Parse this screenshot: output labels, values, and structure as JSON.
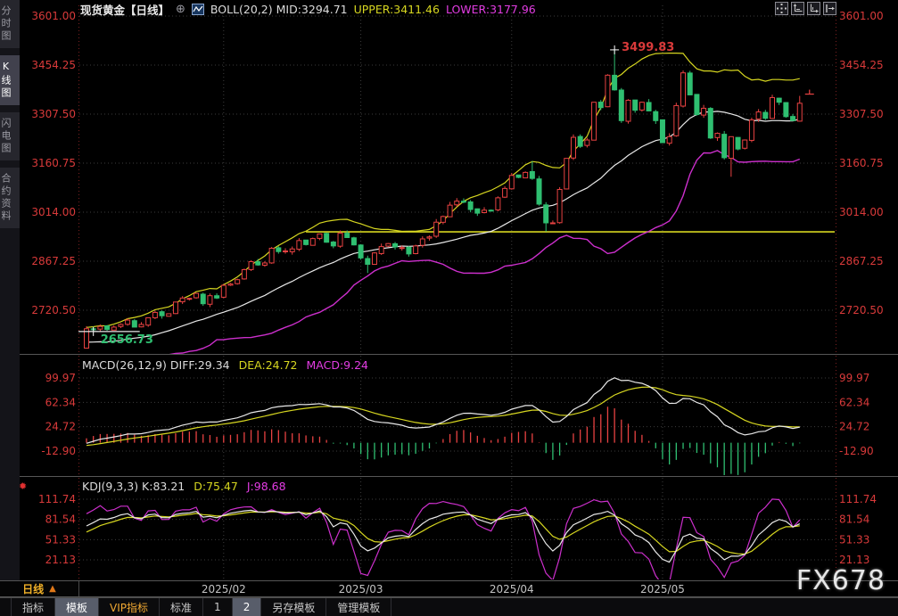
{
  "header": {
    "title": "现货黄金【日线】",
    "expand_symbol": "⊕",
    "boll_readout_white": "BOLL(20,2) MID:3294.71",
    "boll_readout_upper": "UPPER:3411.46",
    "boll_readout_lower": "LOWER:3177.96"
  },
  "sidebar": {
    "items": [
      {
        "label": "分时图",
        "active": false
      },
      {
        "label": "K线图",
        "active": true
      },
      {
        "label": "闪电图",
        "active": false
      },
      {
        "label": "合约资料",
        "active": false
      }
    ]
  },
  "top_right_tools": [
    {
      "name": "crosshair-tool-icon"
    },
    {
      "name": "fit-y-axis-icon"
    },
    {
      "name": "fit-x-axis-icon"
    },
    {
      "name": "pan-right-icon"
    }
  ],
  "macd_panel": {
    "readout_white": "MACD(26,12,9) DIFF:29.34",
    "readout_yellow": "DEA:24.72",
    "readout_magenta": "MACD:9.24",
    "y_ticks": [
      "99.97",
      "62.34",
      "24.72",
      "-12.90"
    ],
    "y_tick_values": [
      99.97,
      62.34,
      24.72,
      -12.9
    ]
  },
  "kdj_panel": {
    "readout_white": "KDJ(9,3,3) K:83.21",
    "readout_yellow": "D:75.47",
    "readout_magenta": "J:98.68",
    "alert_icon": "✹",
    "y_ticks": [
      "111.74",
      "81.54",
      "51.33",
      "21.13"
    ],
    "y_tick_values": [
      111.74,
      81.54,
      51.33,
      21.13
    ]
  },
  "x_axis": {
    "period_label": "日线",
    "period_arrow": "▲",
    "date_ticks": [
      {
        "index": 20,
        "label": "2025/02"
      },
      {
        "index": 40,
        "label": "2025/03"
      },
      {
        "index": 62,
        "label": "2025/04"
      },
      {
        "index": 84,
        "label": "2025/05"
      }
    ]
  },
  "bottom_bar": {
    "items": [
      {
        "label": "指标",
        "selected": false,
        "vip": false
      },
      {
        "label": "模板",
        "selected": true,
        "vip": false
      },
      {
        "label": "VIP指标",
        "selected": false,
        "vip": true
      },
      {
        "label": "标准",
        "selected": false,
        "vip": false
      },
      {
        "label": "1",
        "selected": false,
        "vip": false
      },
      {
        "label": "2",
        "selected": true,
        "vip": false
      },
      {
        "label": "另存模板",
        "selected": false,
        "vip": false
      },
      {
        "label": "管理模板",
        "selected": false,
        "vip": false
      }
    ]
  },
  "watermark": "FX678",
  "colors": {
    "up": "#e84242",
    "down": "#2fbf71",
    "axis_text": "#d93a3a",
    "yellow_line": "#d6d620",
    "white_line": "#e8e8e8",
    "magenta_line": "#cc2fcc",
    "grid": "#3c3c3c",
    "separator": "#565656",
    "date_text": "#c2c2c2",
    "edge_dots": "#7a2020"
  },
  "chart_data": {
    "type": "candlestick",
    "symbol": "现货黄金",
    "period": "日线",
    "title": "现货黄金 日线 K线图 + BOLL(20,2) / MACD(26,12,9) / KDJ(9,3,3)",
    "main_y_ticks": [
      "3601.00",
      "3454.25",
      "3307.50",
      "3160.75",
      "3014.00",
      "2867.25",
      "2720.50"
    ],
    "main_y_tick_values": [
      3601.0,
      3454.25,
      3307.5,
      3160.75,
      3014.0,
      2867.25,
      2720.5
    ],
    "high_annotation": {
      "index": 77,
      "value": 3499.83,
      "label": "3499.83"
    },
    "low_annotation": {
      "index": 1,
      "value": 2656.73,
      "label": "2656.73"
    },
    "alert_line": {
      "price": 2955,
      "start_index": 32
    },
    "pre_closes": [
      2633,
      2650,
      2657,
      2667,
      2636,
      2616,
      2626,
      2608,
      2629,
      2635,
      2622,
      2585,
      2592,
      2598,
      2617,
      2612,
      2624,
      2632,
      2618,
      2606
    ],
    "closes": [
      2665,
      2662,
      2672,
      2663,
      2670,
      2678,
      2691,
      2670,
      2678,
      2698,
      2714,
      2704,
      2710,
      2745,
      2757,
      2756,
      2771,
      2740,
      2764,
      2757,
      2795,
      2799,
      2812,
      2842,
      2866,
      2856,
      2862,
      2906,
      2896,
      2898,
      2904,
      2929,
      2917,
      2935,
      2949,
      2924,
      2913,
      2951,
      2938,
      2916,
      2877,
      2858,
      2892,
      2911,
      2920,
      2910,
      2908,
      2889,
      2913,
      2934,
      2940,
      2984,
      3001,
      3035,
      3047,
      3044,
      3022,
      3011,
      3020,
      3019,
      3057,
      3085,
      3124,
      3118,
      3133,
      3115,
      3038,
      2982,
      2982,
      3082,
      3175,
      3238,
      3211,
      3230,
      3343,
      3327,
      3424,
      3380,
      3288,
      3349,
      3319,
      3343,
      3317,
      3288,
      3222,
      3240,
      3333,
      3431,
      3365,
      3306,
      3325,
      3236,
      3250,
      3177,
      3240,
      3203,
      3230,
      3290,
      3314,
      3295,
      3357,
      3343,
      3300,
      3288,
      3340
    ],
    "overrides": {
      "1": {
        "low": 2656.73
      },
      "41": {
        "low": 2832
      },
      "65": {
        "high": 3167
      },
      "67": {
        "low": 2956
      },
      "77": {
        "high": 3499.83
      },
      "87": {
        "high": 3438
      },
      "94": {
        "low": 3120
      },
      "104": {
        "high": 3362
      }
    },
    "indicators": {
      "boll": {
        "period": 20,
        "mult": 2
      },
      "macd": {
        "fast": 12,
        "slow": 26,
        "signal": 9
      },
      "kdj": {
        "n": 9,
        "k": 3,
        "d": 3
      }
    },
    "macd_axis_range": [
      -12.9,
      99.97
    ],
    "kdj_axis_range": [
      21.13,
      111.74
    ]
  }
}
